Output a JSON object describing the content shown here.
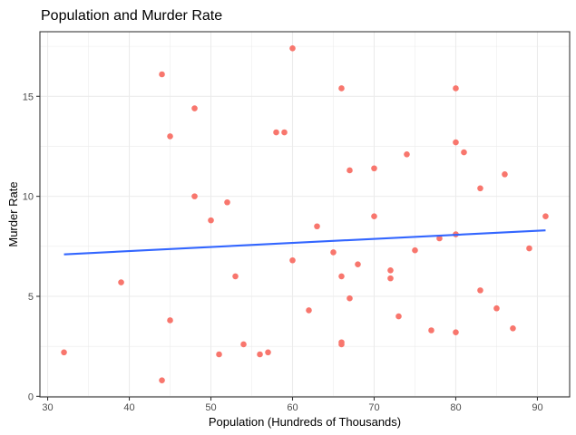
{
  "chart_data": {
    "type": "scatter",
    "title": "Population and Murder Rate",
    "xlabel": "Population (Hundreds of Thousands)",
    "ylabel": "Murder Rate",
    "xlim": [
      29.05,
      93.95
    ],
    "ylim": [
      -0.03,
      18.23
    ],
    "xticks": [
      30,
      40,
      50,
      60,
      70,
      80,
      90
    ],
    "yticks": [
      0,
      5,
      10,
      15
    ],
    "grid": true,
    "colors": {
      "points": "#F8766D",
      "fit": "#3366FF",
      "grid": "#EBEBEB",
      "border": "#333333"
    },
    "points": [
      {
        "x": 32,
        "y": 2.2
      },
      {
        "x": 39,
        "y": 5.7
      },
      {
        "x": 44,
        "y": 16.1
      },
      {
        "x": 44,
        "y": 0.8
      },
      {
        "x": 45,
        "y": 13.0
      },
      {
        "x": 45,
        "y": 3.8
      },
      {
        "x": 48,
        "y": 14.4
      },
      {
        "x": 48,
        "y": 10.0
      },
      {
        "x": 50,
        "y": 8.8
      },
      {
        "x": 51,
        "y": 2.1
      },
      {
        "x": 52,
        "y": 9.7
      },
      {
        "x": 53,
        "y": 6.0
      },
      {
        "x": 54,
        "y": 2.6
      },
      {
        "x": 56,
        "y": 2.1
      },
      {
        "x": 57,
        "y": 2.2
      },
      {
        "x": 58,
        "y": 13.2
      },
      {
        "x": 59,
        "y": 13.2
      },
      {
        "x": 60,
        "y": 17.4
      },
      {
        "x": 60,
        "y": 6.8
      },
      {
        "x": 62,
        "y": 4.3
      },
      {
        "x": 63,
        "y": 8.5
      },
      {
        "x": 65,
        "y": 7.2
      },
      {
        "x": 66,
        "y": 15.4
      },
      {
        "x": 66,
        "y": 6.0
      },
      {
        "x": 66,
        "y": 2.7
      },
      {
        "x": 66,
        "y": 2.6
      },
      {
        "x": 67,
        "y": 11.3
      },
      {
        "x": 67,
        "y": 4.9
      },
      {
        "x": 68,
        "y": 6.6
      },
      {
        "x": 70,
        "y": 11.4
      },
      {
        "x": 70,
        "y": 9.0
      },
      {
        "x": 72,
        "y": 6.3
      },
      {
        "x": 72,
        "y": 5.9
      },
      {
        "x": 73,
        "y": 4.0
      },
      {
        "x": 74,
        "y": 12.1
      },
      {
        "x": 75,
        "y": 7.3
      },
      {
        "x": 77,
        "y": 3.3
      },
      {
        "x": 78,
        "y": 7.9
      },
      {
        "x": 80,
        "y": 15.4
      },
      {
        "x": 80,
        "y": 12.7
      },
      {
        "x": 80,
        "y": 8.1
      },
      {
        "x": 80,
        "y": 3.2
      },
      {
        "x": 81,
        "y": 12.2
      },
      {
        "x": 83,
        "y": 10.4
      },
      {
        "x": 83,
        "y": 5.3
      },
      {
        "x": 85,
        "y": 4.4
      },
      {
        "x": 86,
        "y": 11.1
      },
      {
        "x": 87,
        "y": 3.4
      },
      {
        "x": 89,
        "y": 7.4
      },
      {
        "x": 91,
        "y": 9.0
      }
    ],
    "fit_line": {
      "x": [
        32,
        91
      ],
      "y": [
        7.1,
        8.3
      ]
    }
  }
}
